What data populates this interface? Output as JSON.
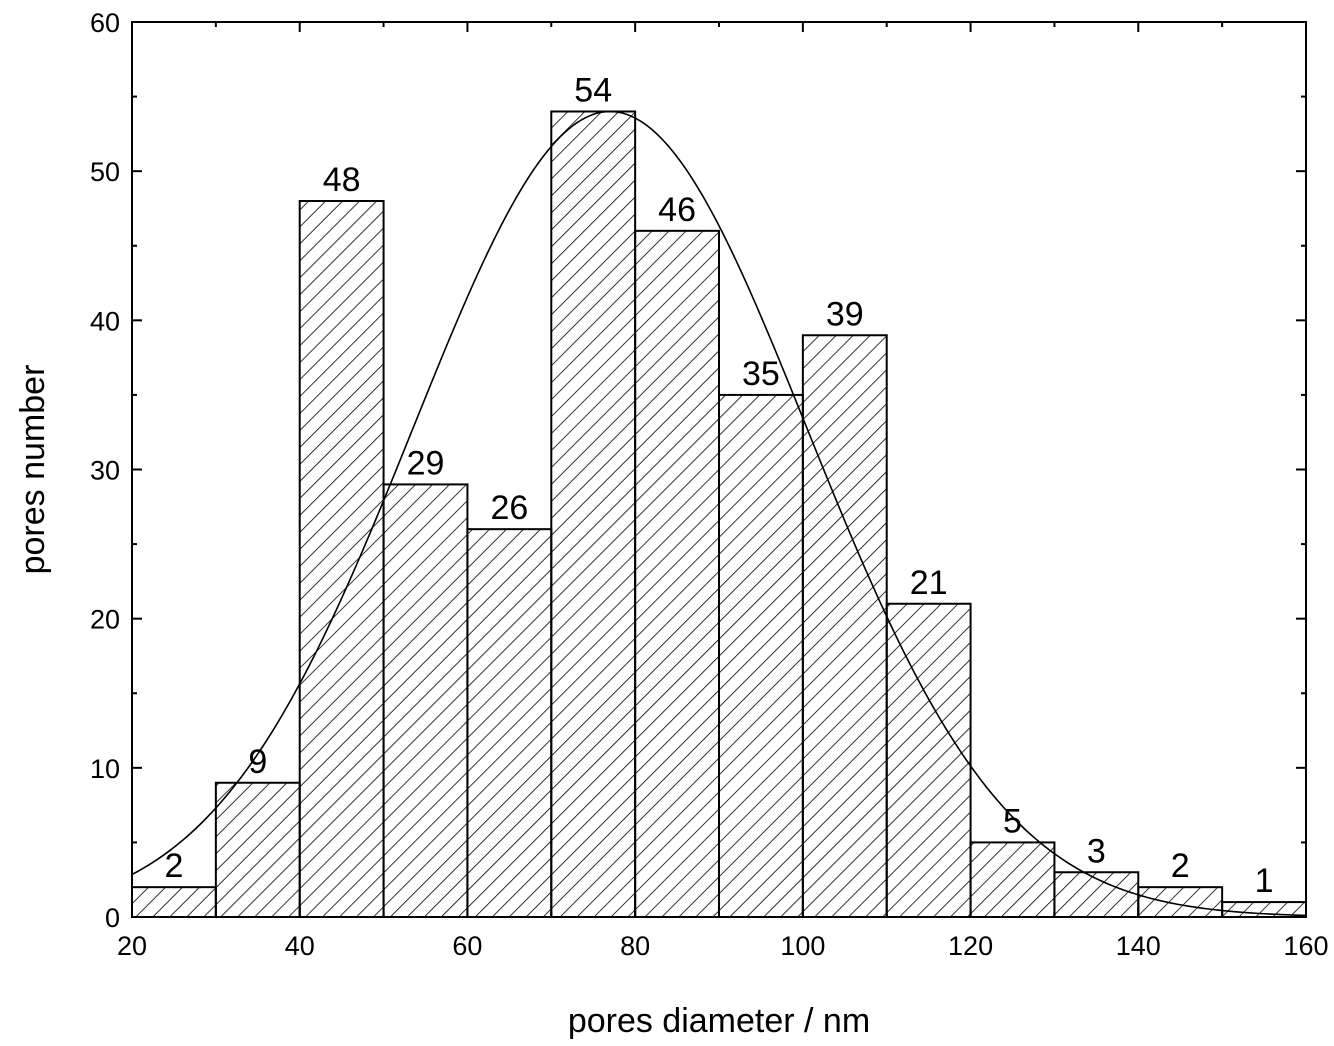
{
  "chart_data": {
    "type": "bar",
    "title": "",
    "xlabel": "pores diameter / nm",
    "ylabel": "pores number",
    "xlim": [
      20,
      160
    ],
    "ylim": [
      0,
      60
    ],
    "x_ticks": [
      20,
      40,
      60,
      80,
      100,
      120,
      140,
      160
    ],
    "y_ticks": [
      0,
      10,
      20,
      30,
      40,
      50,
      60
    ],
    "bin_width": 10,
    "bins": [
      {
        "x0": 20,
        "x1": 30,
        "value": 2,
        "label": "2"
      },
      {
        "x0": 30,
        "x1": 40,
        "value": 9,
        "label": "9"
      },
      {
        "x0": 40,
        "x1": 50,
        "value": 48,
        "label": "48"
      },
      {
        "x0": 50,
        "x1": 60,
        "value": 29,
        "label": "29"
      },
      {
        "x0": 60,
        "x1": 70,
        "value": 26,
        "label": "26"
      },
      {
        "x0": 70,
        "x1": 80,
        "value": 54,
        "label": "54"
      },
      {
        "x0": 80,
        "x1": 90,
        "value": 46,
        "label": "46"
      },
      {
        "x0": 90,
        "x1": 100,
        "value": 35,
        "label": "35"
      },
      {
        "x0": 100,
        "x1": 110,
        "value": 39,
        "label": "39"
      },
      {
        "x0": 110,
        "x1": 120,
        "value": 21,
        "label": "21"
      },
      {
        "x0": 120,
        "x1": 130,
        "value": 5,
        "label": "5"
      },
      {
        "x0": 130,
        "x1": 140,
        "value": 3,
        "label": "3"
      },
      {
        "x0": 140,
        "x1": 150,
        "value": 2,
        "label": "2"
      },
      {
        "x0": 150,
        "x1": 160,
        "value": 1,
        "label": "1"
      }
    ],
    "fit_curve": {
      "type": "gaussian",
      "center": 77,
      "sigma": 23.5,
      "peak": 54,
      "offset": 0
    },
    "fill_pattern": "diagonal-hatch",
    "grid": false,
    "legend": "none",
    "colors": {
      "foreground": "#000000",
      "background": "#ffffff"
    }
  }
}
